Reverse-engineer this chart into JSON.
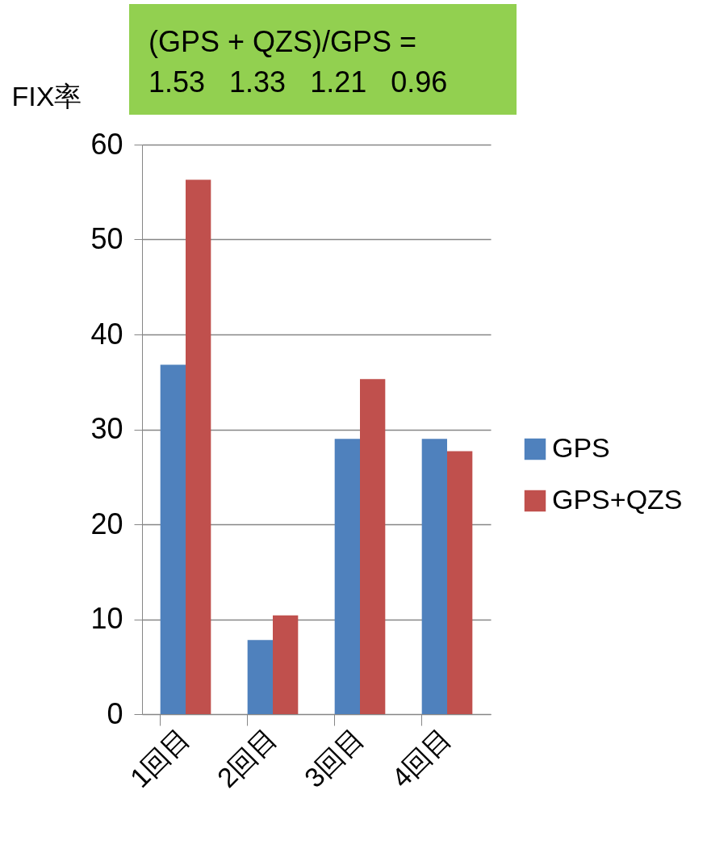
{
  "chart_data": {
    "type": "bar",
    "ylabel": "FIX率",
    "annotations": [
      "(GPS + QZS)/GPS =",
      "1.53   1.33   1.21   0.96"
    ],
    "categories": [
      "1回目",
      "2回目",
      "3回目",
      "4回目"
    ],
    "series": [
      {
        "name": "GPS",
        "color": "#4f81bd",
        "values": [
          36.8,
          7.8,
          29.0,
          29.0
        ]
      },
      {
        "name": "GPS+QZS",
        "color": "#c0504d",
        "values": [
          56.3,
          10.4,
          35.3,
          27.7
        ]
      }
    ],
    "ylim": [
      0,
      60
    ],
    "yticks": [
      0,
      10,
      20,
      30,
      40,
      50,
      60
    ],
    "grid": "y",
    "legend": "right"
  }
}
